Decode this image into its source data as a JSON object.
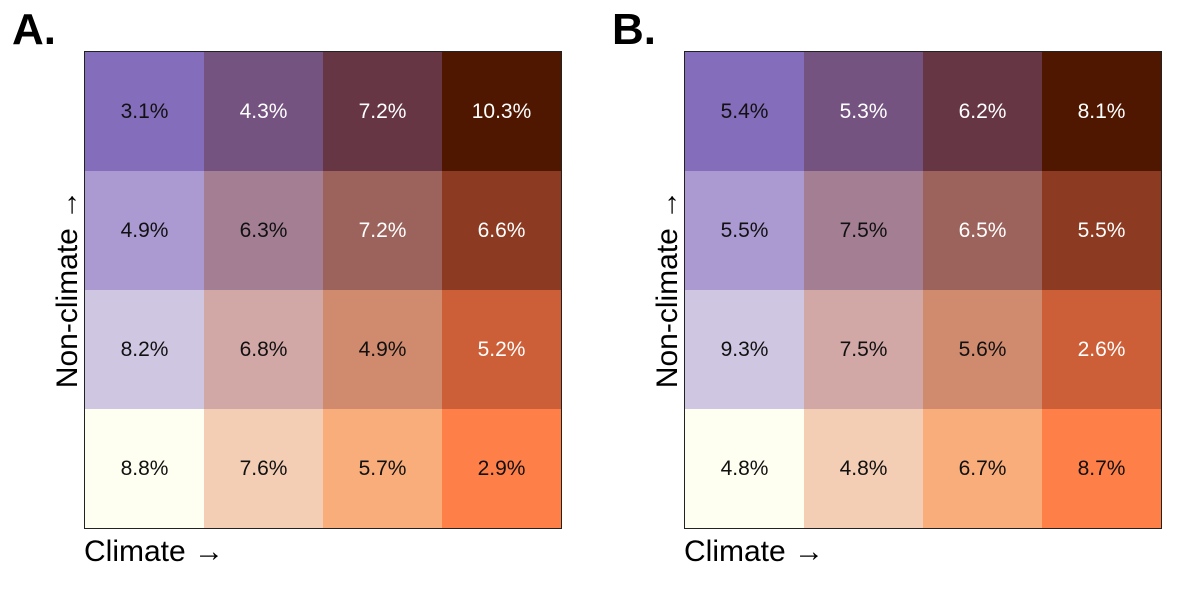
{
  "panels": [
    {
      "letter": "A.",
      "xlabel": "Climate →",
      "ylabel": "Non-climate →"
    },
    {
      "letter": "B.",
      "xlabel": "Climate →",
      "ylabel": "Non-climate →"
    }
  ],
  "colors": [
    [
      "#846dbb",
      "#745380",
      "#663645",
      "#4f1700"
    ],
    [
      "#ab9ad1",
      "#a47f94",
      "#9c625c",
      "#8c3a21"
    ],
    [
      "#cfc6e2",
      "#d2a8a7",
      "#d08a6e",
      "#cd5f38"
    ],
    [
      "#fefff0",
      "#f3ceb4",
      "#f9ad7b",
      "#ff7f48"
    ]
  ],
  "text_colors": [
    [
      "#111111",
      "#ffffff",
      "#ffffff",
      "#ffffff"
    ],
    [
      "#111111",
      "#111111",
      "#ffffff",
      "#ffffff"
    ],
    [
      "#111111",
      "#111111",
      "#111111",
      "#ffffff"
    ],
    [
      "#111111",
      "#111111",
      "#111111",
      "#111111"
    ]
  ],
  "chart_data": [
    {
      "type": "heatmap",
      "title": "A.",
      "xlabel": "Climate →",
      "ylabel": "Non-climate →",
      "row_order": "top-to-bottom (high non-climate to low)",
      "col_order": "left-to-right (low climate to high)",
      "values": [
        [
          "3.1%",
          "4.3%",
          "7.2%",
          "10.3%"
        ],
        [
          "4.9%",
          "6.3%",
          "7.2%",
          "6.6%"
        ],
        [
          "8.2%",
          "6.8%",
          "4.9%",
          "5.2%"
        ],
        [
          "8.8%",
          "7.6%",
          "5.7%",
          "2.9%"
        ]
      ]
    },
    {
      "type": "heatmap",
      "title": "B.",
      "xlabel": "Climate →",
      "ylabel": "Non-climate →",
      "row_order": "top-to-bottom (high non-climate to low)",
      "col_order": "left-to-right (low climate to high)",
      "values": [
        [
          "5.4%",
          "5.3%",
          "6.2%",
          "8.1%"
        ],
        [
          "5.5%",
          "7.5%",
          "6.5%",
          "5.5%"
        ],
        [
          "9.3%",
          "7.5%",
          "5.6%",
          "2.6%"
        ],
        [
          "4.8%",
          "4.8%",
          "6.7%",
          "8.7%"
        ]
      ]
    }
  ]
}
